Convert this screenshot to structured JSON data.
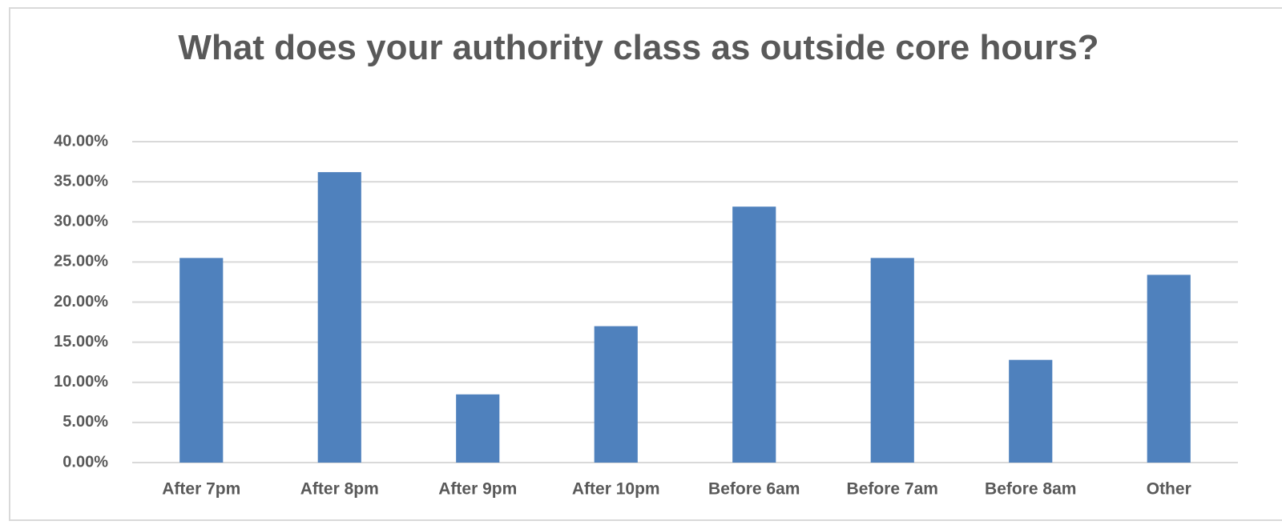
{
  "chart_data": {
    "type": "bar",
    "title": "What does your authority class as outside core hours?",
    "categories": [
      "After 7pm",
      "After 8pm",
      "After 9pm",
      "After 10pm",
      "Before 6am",
      "Before 7am",
      "Before 8am",
      "Other"
    ],
    "values": [
      25.5,
      36.2,
      8.5,
      17.0,
      31.9,
      25.5,
      12.8,
      23.4
    ],
    "color": "#4f81bd",
    "ylim": [
      0,
      40
    ],
    "yticks": [
      {
        "value": 0,
        "label": "0.00%"
      },
      {
        "value": 5,
        "label": "5.00%"
      },
      {
        "value": 10,
        "label": "10.00%"
      },
      {
        "value": 15,
        "label": "15.00%"
      },
      {
        "value": 20,
        "label": "20.00%"
      },
      {
        "value": 25,
        "label": "25.00%"
      },
      {
        "value": 30,
        "label": "30.00%"
      },
      {
        "value": 35,
        "label": "35.00%"
      },
      {
        "value": 40,
        "label": "40.00%"
      }
    ],
    "grid": true
  }
}
